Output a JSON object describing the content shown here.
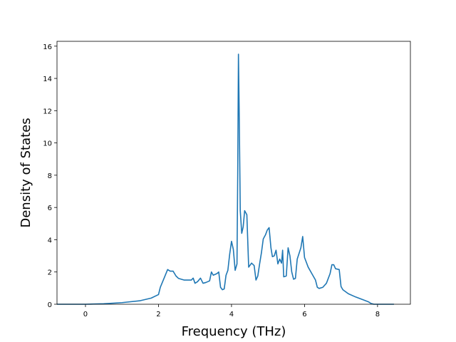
{
  "chart_data": {
    "type": "line",
    "title": "",
    "xlabel": "Frequency (THz)",
    "ylabel": "Density of States",
    "xlim": [
      -0.78,
      8.9
    ],
    "ylim": [
      0,
      16.3
    ],
    "x_ticks": [
      "0",
      "2",
      "4",
      "6",
      "8"
    ],
    "y_ticks": [
      "0",
      "2",
      "4",
      "6",
      "8",
      "10",
      "12",
      "14",
      "16"
    ],
    "grid": false,
    "legend": "none",
    "series": [
      {
        "color": "#1f77b4",
        "points": [
          [
            -0.78,
            0.0
          ],
          [
            0.0,
            0.0
          ],
          [
            0.5,
            0.03
          ],
          [
            1.0,
            0.1
          ],
          [
            1.5,
            0.22
          ],
          [
            1.8,
            0.38
          ],
          [
            2.0,
            0.6
          ],
          [
            2.05,
            1.05
          ],
          [
            2.15,
            1.6
          ],
          [
            2.25,
            2.15
          ],
          [
            2.32,
            2.05
          ],
          [
            2.4,
            2.05
          ],
          [
            2.48,
            1.75
          ],
          [
            2.55,
            1.6
          ],
          [
            2.7,
            1.5
          ],
          [
            2.9,
            1.5
          ],
          [
            2.95,
            1.62
          ],
          [
            3.0,
            1.3
          ],
          [
            3.07,
            1.4
          ],
          [
            3.15,
            1.62
          ],
          [
            3.22,
            1.3
          ],
          [
            3.3,
            1.35
          ],
          [
            3.4,
            1.45
          ],
          [
            3.45,
            2.0
          ],
          [
            3.5,
            1.8
          ],
          [
            3.6,
            1.9
          ],
          [
            3.65,
            2.0
          ],
          [
            3.7,
            1.05
          ],
          [
            3.75,
            0.9
          ],
          [
            3.8,
            0.95
          ],
          [
            3.85,
            1.8
          ],
          [
            3.9,
            2.1
          ],
          [
            3.95,
            3.1
          ],
          [
            4.0,
            3.9
          ],
          [
            4.05,
            3.4
          ],
          [
            4.1,
            2.1
          ],
          [
            4.15,
            2.5
          ],
          [
            4.17,
            8.0
          ],
          [
            4.19,
            15.5
          ],
          [
            4.21,
            12.0
          ],
          [
            4.24,
            5.8
          ],
          [
            4.28,
            4.4
          ],
          [
            4.32,
            4.8
          ],
          [
            4.36,
            5.8
          ],
          [
            4.42,
            5.55
          ],
          [
            4.47,
            2.3
          ],
          [
            4.55,
            2.55
          ],
          [
            4.62,
            2.4
          ],
          [
            4.67,
            1.5
          ],
          [
            4.72,
            1.75
          ],
          [
            4.77,
            2.5
          ],
          [
            4.82,
            3.2
          ],
          [
            4.87,
            4.05
          ],
          [
            4.93,
            4.3
          ],
          [
            4.98,
            4.6
          ],
          [
            5.03,
            4.75
          ],
          [
            5.08,
            3.5
          ],
          [
            5.12,
            2.95
          ],
          [
            5.17,
            3.0
          ],
          [
            5.22,
            3.35
          ],
          [
            5.27,
            2.5
          ],
          [
            5.32,
            2.8
          ],
          [
            5.37,
            2.55
          ],
          [
            5.4,
            3.35
          ],
          [
            5.43,
            1.7
          ],
          [
            5.5,
            1.75
          ],
          [
            5.55,
            3.5
          ],
          [
            5.6,
            3.0
          ],
          [
            5.65,
            2.0
          ],
          [
            5.7,
            1.55
          ],
          [
            5.75,
            1.6
          ],
          [
            5.8,
            2.8
          ],
          [
            5.9,
            3.5
          ],
          [
            5.95,
            4.2
          ],
          [
            6.0,
            2.9
          ],
          [
            6.1,
            2.3
          ],
          [
            6.2,
            1.9
          ],
          [
            6.3,
            1.5
          ],
          [
            6.35,
            1.05
          ],
          [
            6.4,
            0.98
          ],
          [
            6.5,
            1.05
          ],
          [
            6.6,
            1.3
          ],
          [
            6.7,
            1.9
          ],
          [
            6.75,
            2.45
          ],
          [
            6.8,
            2.45
          ],
          [
            6.85,
            2.2
          ],
          [
            6.95,
            2.15
          ],
          [
            7.0,
            1.1
          ],
          [
            7.05,
            0.9
          ],
          [
            7.2,
            0.65
          ],
          [
            7.4,
            0.45
          ],
          [
            7.6,
            0.28
          ],
          [
            7.75,
            0.15
          ],
          [
            7.82,
            0.05
          ],
          [
            7.9,
            0.0
          ],
          [
            8.45,
            0.0
          ]
        ]
      }
    ]
  }
}
